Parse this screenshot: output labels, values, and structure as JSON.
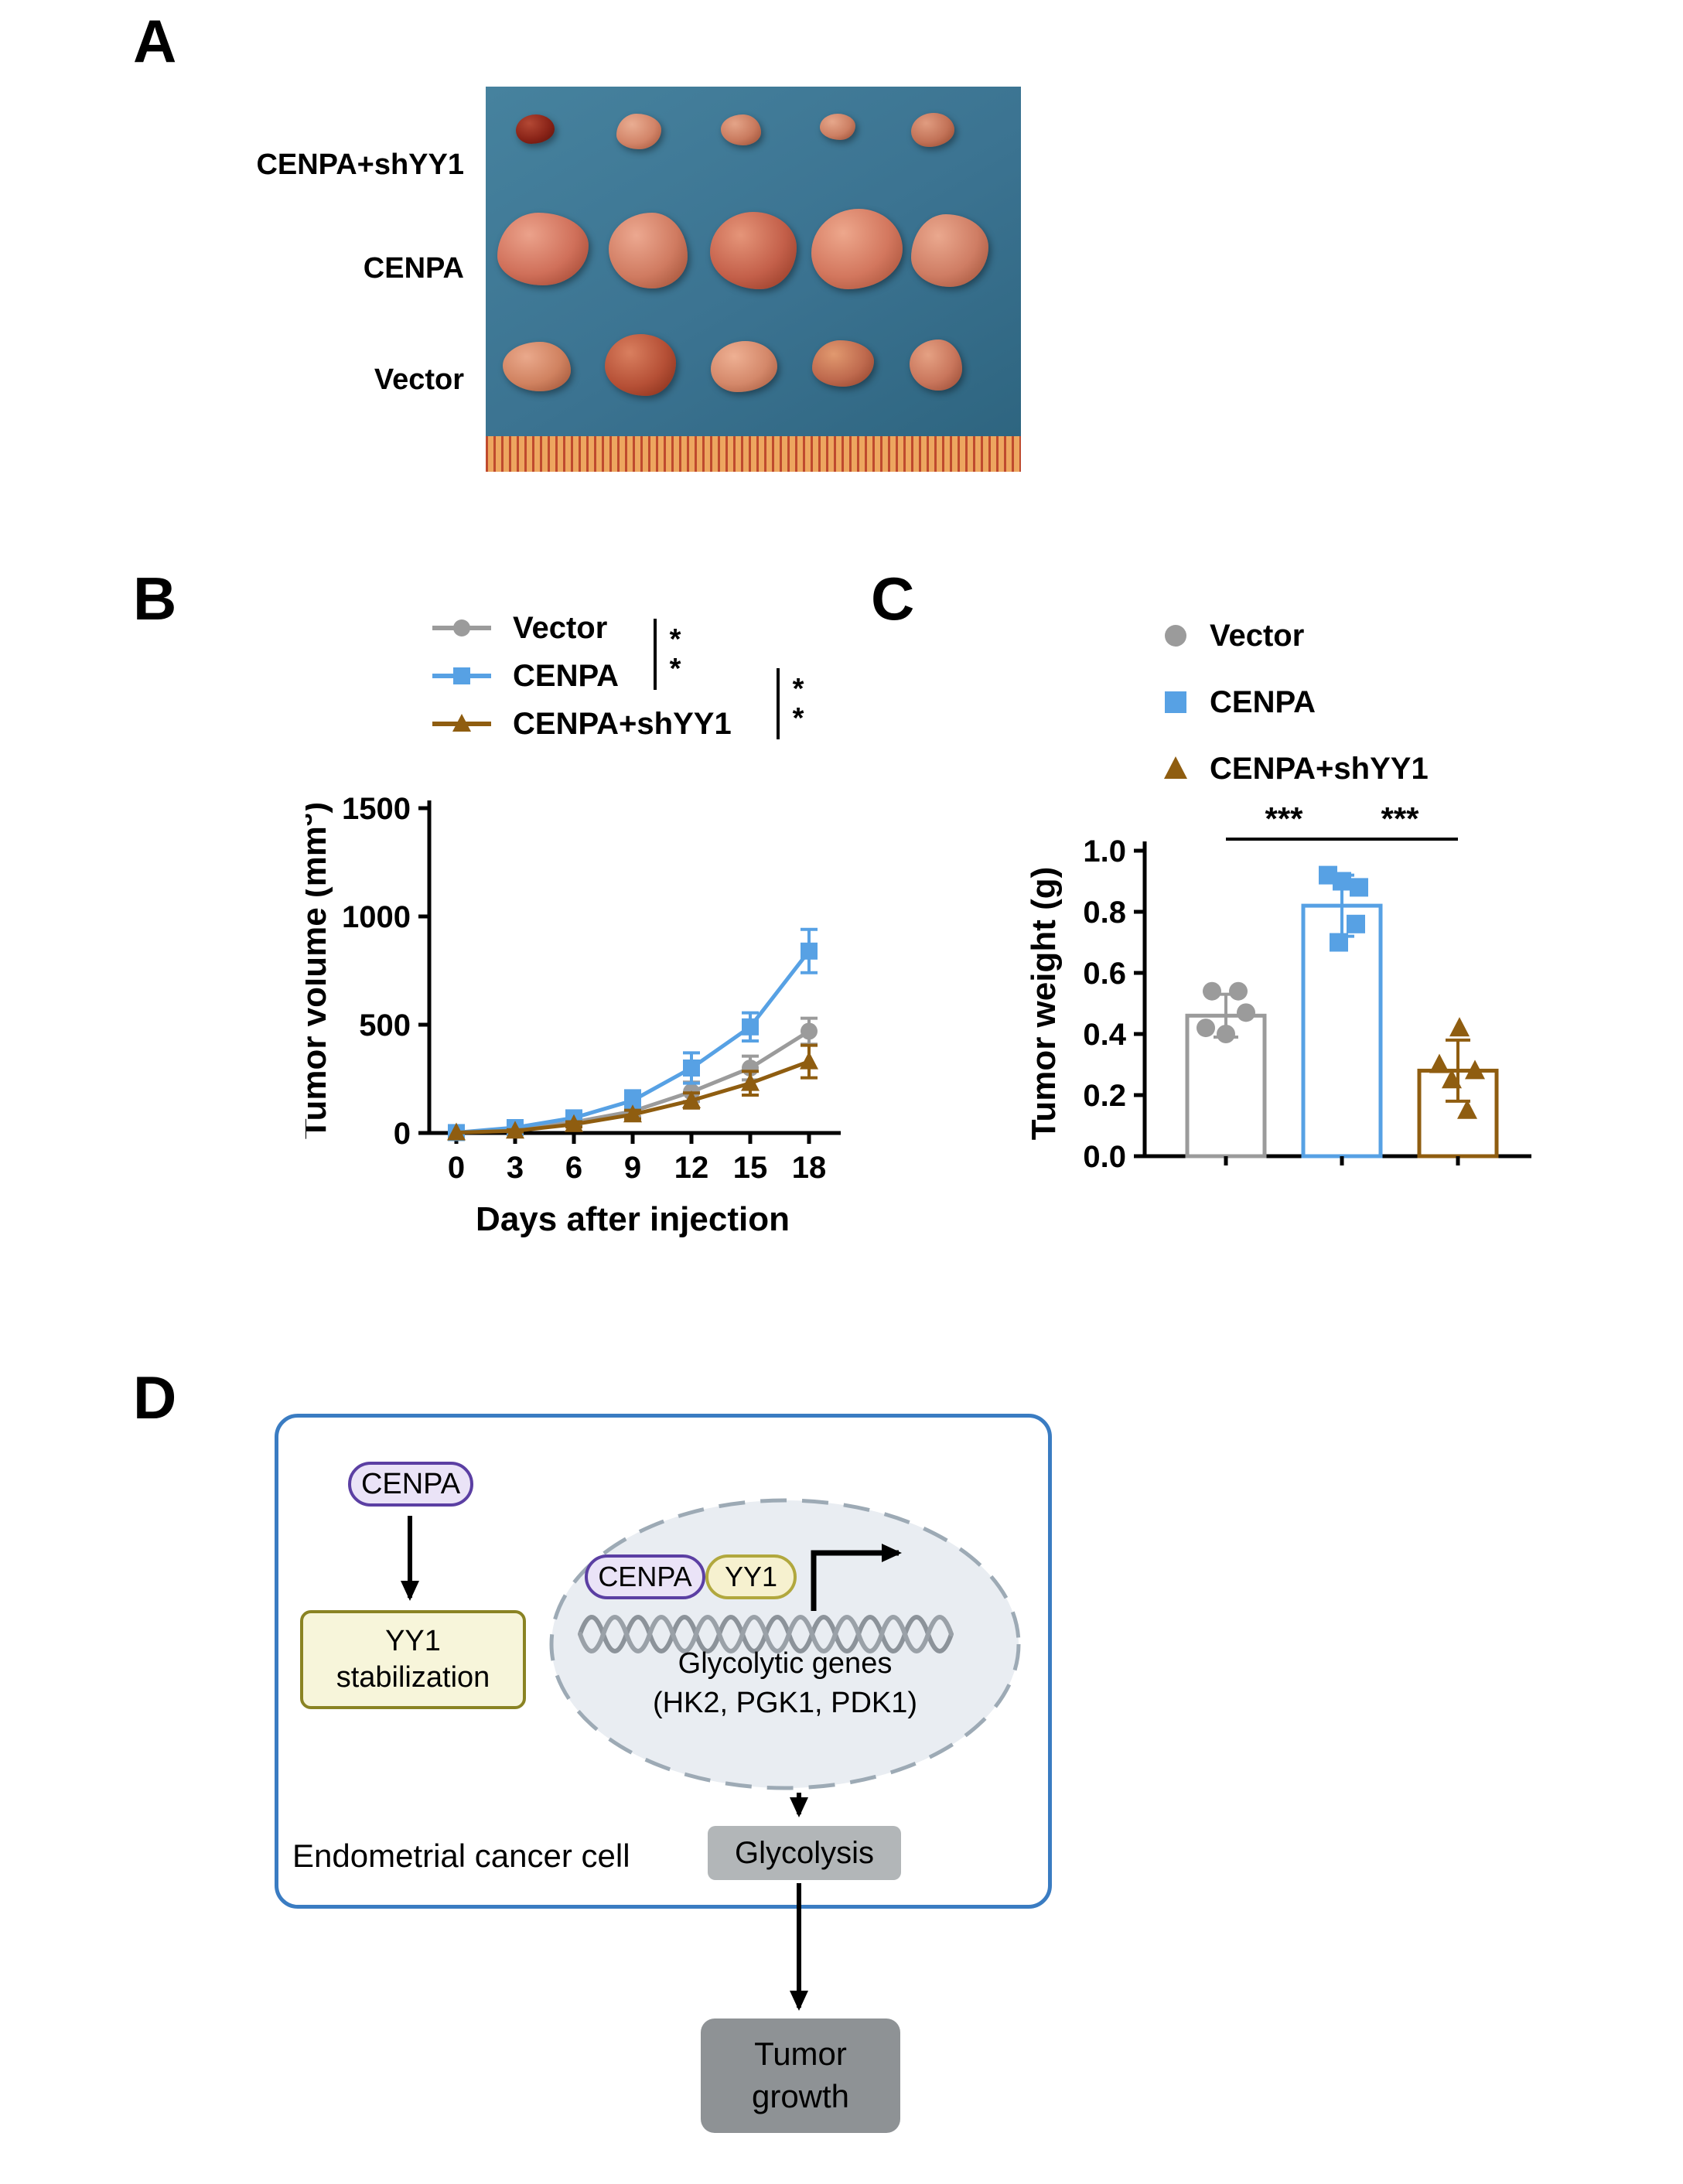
{
  "panel_a": {
    "label": "A",
    "row_labels": [
      "CENPA+shYY1",
      "CENPA",
      "Vector"
    ]
  },
  "panel_b": {
    "label": "B",
    "legend": [
      {
        "name": "Vector",
        "color": "#9b9b9b",
        "marker": "circle"
      },
      {
        "name": "CENPA",
        "color": "#57a1e4",
        "marker": "square"
      },
      {
        "name": "CENPA+shYY1",
        "color": "#8f5d10",
        "marker": "triangle"
      }
    ],
    "significance": [
      {
        "between": [
          "Vector",
          "CENPA"
        ],
        "label": "**"
      },
      {
        "between": [
          "CENPA",
          "CENPA+shYY1"
        ],
        "label": "**"
      }
    ]
  },
  "panel_c": {
    "label": "C",
    "legend": [
      {
        "name": "Vector",
        "color": "#9b9b9b",
        "marker": "circle"
      },
      {
        "name": "CENPA",
        "color": "#57a1e4",
        "marker": "square"
      },
      {
        "name": "CENPA+shYY1",
        "color": "#8f5d10",
        "marker": "triangle"
      }
    ]
  },
  "panel_d": {
    "label": "D",
    "cell_label": "Endometrial cancer cell",
    "cenpa_pill": "CENPA",
    "yy1_stabilization_line1": "YY1",
    "yy1_stabilization_line2": "stabilization",
    "nucleus": {
      "cenpa_pill": "CENPA",
      "yy1_pill": "YY1",
      "genes_line1": "Glycolytic genes",
      "genes_line2": "(HK2, PGK1, PDK1)"
    },
    "glycolysis": "Glycolysis",
    "tumor_growth_line1": "Tumor",
    "tumor_growth_line2": "growth"
  },
  "chart_data": [
    {
      "type": "line",
      "xlabel": "Days after injection",
      "ylabel": "Tumor volume (mm³)",
      "x": [
        0,
        3,
        6,
        9,
        12,
        15,
        18
      ],
      "ylim": [
        0,
        1500
      ],
      "yticks": [
        0,
        500,
        1000,
        1500
      ],
      "grid": false,
      "legend_position": "top",
      "series": [
        {
          "name": "Vector",
          "color": "#9b9b9b",
          "marker": "circle",
          "values": [
            2,
            15,
            50,
            100,
            190,
            300,
            470
          ],
          "errors": [
            0,
            8,
            15,
            25,
            45,
            55,
            60
          ]
        },
        {
          "name": "CENPA",
          "color": "#57a1e4",
          "marker": "square",
          "values": [
            2,
            25,
            70,
            150,
            300,
            490,
            840
          ],
          "errors": [
            0,
            8,
            18,
            45,
            70,
            65,
            100
          ]
        },
        {
          "name": "CENPA+shYY1",
          "color": "#8f5d10",
          "marker": "triangle",
          "values": [
            2,
            10,
            40,
            85,
            150,
            230,
            330
          ],
          "errors": [
            0,
            5,
            12,
            20,
            35,
            55,
            75
          ]
        }
      ],
      "significance": [
        {
          "between": [
            "Vector",
            "CENPA"
          ],
          "label": "**"
        },
        {
          "between": [
            "CENPA",
            "CENPA+shYY1"
          ],
          "label": "**"
        }
      ]
    },
    {
      "type": "bar",
      "ylabel": "Tumor weight (g)",
      "ylim": [
        0,
        1.0
      ],
      "yticks": [
        0.0,
        0.2,
        0.4,
        0.6,
        0.8,
        1.0
      ],
      "grid": false,
      "categories": [
        "Vector",
        "CENPA",
        "CENPA+shYY1"
      ],
      "means": [
        0.46,
        0.82,
        0.28
      ],
      "errors": [
        0.07,
        0.1,
        0.1
      ],
      "points": [
        [
          0.54,
          0.54,
          0.47,
          0.42,
          0.4
        ],
        [
          0.92,
          0.9,
          0.88,
          0.76,
          0.7
        ],
        [
          0.42,
          0.3,
          0.28,
          0.25,
          0.15
        ]
      ],
      "colors": [
        "#9b9b9b",
        "#57a1e4",
        "#8f5d10"
      ],
      "markers": [
        "circle",
        "square",
        "triangle"
      ],
      "significance": [
        {
          "between": [
            "Vector",
            "CENPA"
          ],
          "label": "***"
        },
        {
          "between": [
            "CENPA",
            "CENPA+shYY1"
          ],
          "label": "***"
        }
      ]
    }
  ]
}
